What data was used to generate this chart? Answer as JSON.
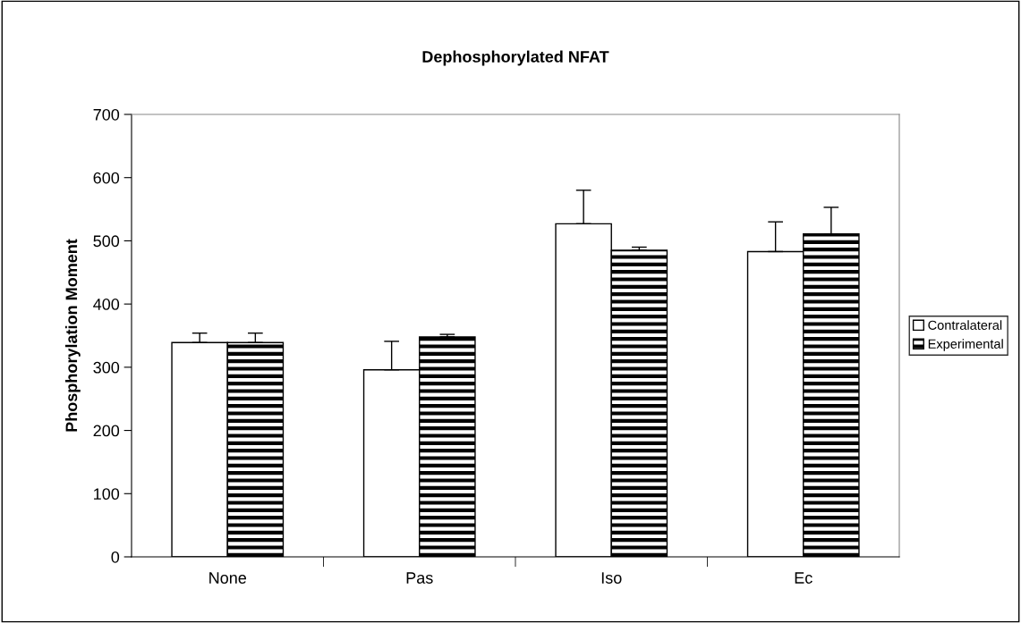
{
  "chart_data": {
    "type": "bar",
    "title": "Dephosphorylated NFAT",
    "ylabel": "Phosphorylation Moment",
    "categories": [
      "None",
      "Pas",
      "Iso",
      "Ec"
    ],
    "series": [
      {
        "name": "Contralateral",
        "color": "#ffffff",
        "values": [
          339,
          296,
          527,
          483
        ],
        "errors": [
          15,
          45,
          53,
          47
        ]
      },
      {
        "name": "Experimental",
        "color": "#000000",
        "values": [
          339,
          348,
          485,
          511
        ],
        "errors": [
          15,
          4,
          5,
          42
        ]
      }
    ],
    "ylim": [
      0,
      700
    ],
    "yticks": [
      0,
      100,
      200,
      300,
      400,
      500,
      600,
      700
    ],
    "grid": false,
    "legend": "right"
  }
}
